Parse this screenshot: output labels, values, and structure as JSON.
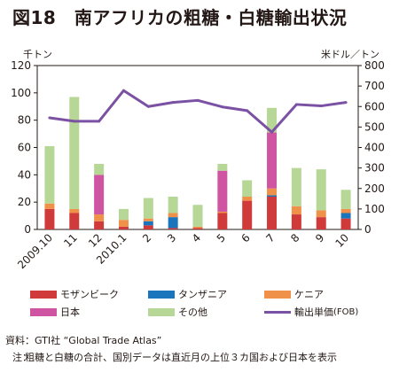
{
  "title": "図18　南アフリカの粗糖・白糖輸出状況",
  "chart_data": {
    "type": "bar",
    "stacked": true,
    "categories": [
      "2009.10",
      "11",
      "12",
      "2010.1",
      "2",
      "3",
      "4",
      "5",
      "6",
      "7",
      "8",
      "9",
      "10"
    ],
    "y_left": {
      "unit": "千トン",
      "range": [
        0,
        120
      ],
      "ticks": [
        0,
        20,
        40,
        60,
        80,
        100,
        120
      ]
    },
    "y_right": {
      "unit": "米ドル／トン",
      "range": [
        0,
        800
      ],
      "ticks": [
        0,
        100,
        200,
        300,
        400,
        500,
        600,
        700,
        800
      ]
    },
    "series": [
      {
        "name": "モザンビーク",
        "color": "#d13a3a",
        "values": [
          15,
          12,
          6,
          2,
          3,
          1,
          1,
          12,
          21,
          24,
          11,
          9,
          8
        ]
      },
      {
        "name": "タンザニア",
        "color": "#1b75bc",
        "values": [
          0,
          0,
          0,
          0,
          3,
          8,
          0,
          0,
          0,
          1,
          0,
          0,
          4
        ]
      },
      {
        "name": "ケニア",
        "color": "#f0914a",
        "values": [
          4,
          3,
          5,
          5,
          2,
          3,
          1,
          1,
          3,
          5,
          6,
          5,
          3
        ]
      },
      {
        "name": "日本",
        "color": "#cf55a3",
        "values": [
          0,
          0,
          29,
          0,
          0,
          0,
          0,
          30,
          0,
          41,
          0,
          0,
          0
        ]
      },
      {
        "name": "その他",
        "color": "#b7d796",
        "values": [
          42,
          82,
          8,
          8,
          15,
          12,
          16,
          5,
          12,
          18,
          28,
          30,
          14
        ]
      }
    ],
    "line": {
      "name": "輸出単価",
      "suffix": "(FOB)",
      "axis": "right",
      "color": "#7b52a3",
      "values": [
        545,
        528,
        528,
        678,
        600,
        620,
        630,
        598,
        580,
        475,
        610,
        603,
        620
      ]
    },
    "grid": false,
    "legend": "bottom"
  },
  "source": "資料：GTI社 “Global Trade Atlas”",
  "note_label": "注：",
  "note": "粗糖と白糖の合計、国別データは直近月の上位３カ国および日本を表示"
}
